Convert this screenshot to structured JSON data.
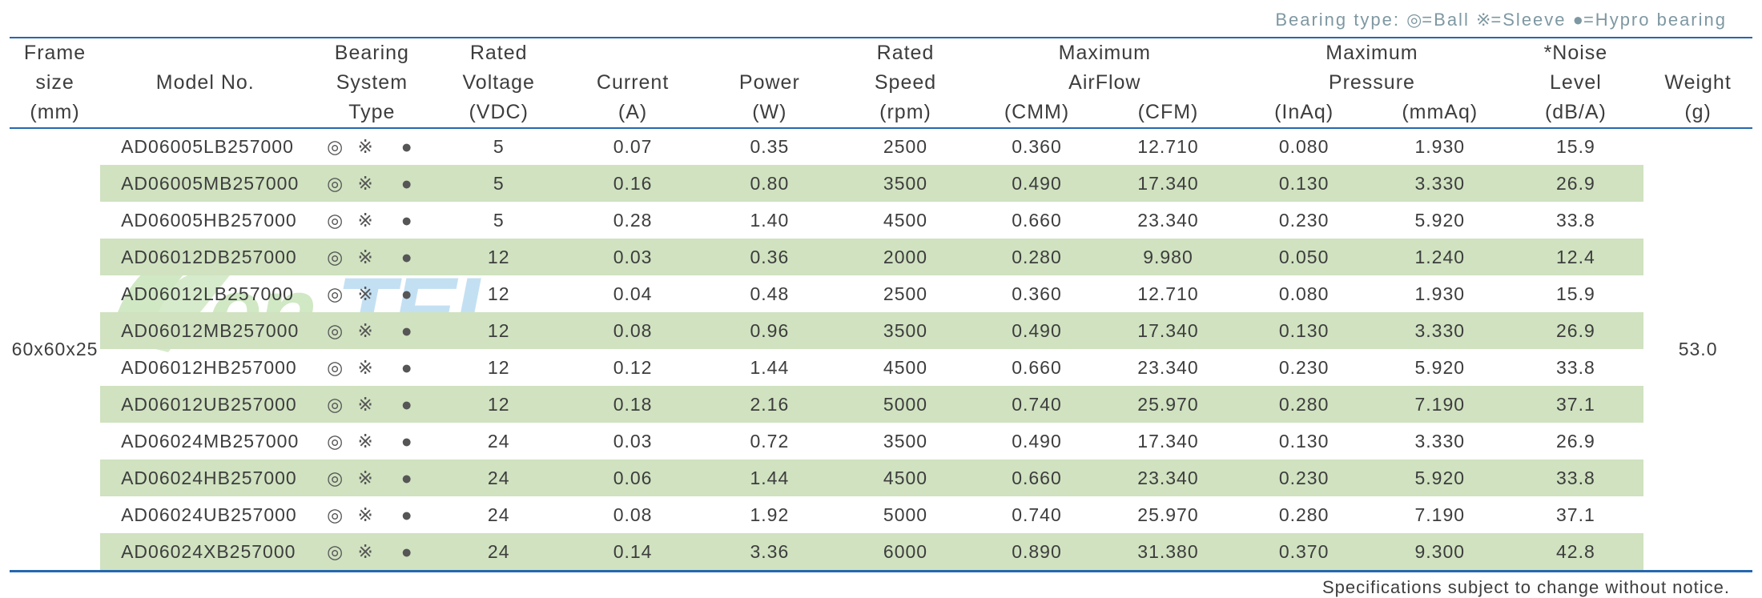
{
  "legend": {
    "label": "Bearing type:",
    "items": [
      {
        "sym": "◎",
        "text": "=Ball"
      },
      {
        "sym": "※",
        "text": "=Sleeve"
      },
      {
        "sym": "●",
        "text": "=Hypro bearing"
      }
    ],
    "color": "#7e98a2",
    "fontsize": 22
  },
  "watermark": {
    "text1": "en",
    "text2": "TEL",
    "color1": "#5bb030",
    "color2": "#2a93d6",
    "leaf_color": "#5bb030",
    "opacity": 0.28
  },
  "table": {
    "type": "table",
    "columns": [
      {
        "key": "frame",
        "header_lines": [
          "Frame",
          "size",
          "(mm)"
        ],
        "class": "col-frame"
      },
      {
        "key": "model",
        "header_lines": [
          "",
          "Model No.",
          ""
        ],
        "class": "col-model"
      },
      {
        "key": "bearing",
        "header_lines": [
          "Bearing",
          "System",
          "Type"
        ],
        "class": "col-bearing"
      },
      {
        "key": "voltage",
        "header_lines": [
          "Rated",
          "Voltage",
          "(VDC)"
        ],
        "class": "col-voltage"
      },
      {
        "key": "current",
        "header_lines": [
          "",
          "Current",
          "(A)"
        ],
        "class": "col-current"
      },
      {
        "key": "power",
        "header_lines": [
          "",
          "Power",
          "(W)"
        ],
        "class": "col-power"
      },
      {
        "key": "speed",
        "header_lines": [
          "Rated",
          "Speed",
          "(rpm)"
        ],
        "class": "col-speed"
      },
      {
        "key": "airflow",
        "header_span": 2,
        "header_lines": [
          "Maximum",
          "AirFlow"
        ],
        "sub": [
          "(CMM)",
          "(CFM)"
        ],
        "classes": [
          "col-cmm",
          "col-cfm"
        ]
      },
      {
        "key": "pressure",
        "header_span": 2,
        "header_lines": [
          "Maximum",
          "Pressure"
        ],
        "sub": [
          "(InAq)",
          "(mmAq)"
        ],
        "classes": [
          "col-inaq",
          "col-mmaq"
        ]
      },
      {
        "key": "noise",
        "header_lines": [
          "*Noise",
          "Level",
          "(dB/A)"
        ],
        "class": "col-noise"
      },
      {
        "key": "weight",
        "header_lines": [
          "",
          "Weight",
          "(g)"
        ],
        "class": "col-weight"
      }
    ],
    "frame_size": "60x60x25",
    "weight": "53.0",
    "bearing_symbols": "◎ ※ ●",
    "rows": [
      {
        "model": "AD06005LB257000",
        "voltage": "5",
        "current": "0.07",
        "power": "0.35",
        "speed": "2500",
        "cmm": "0.360",
        "cfm": "12.710",
        "inaq": "0.080",
        "mmaq": "1.930",
        "noise": "15.9"
      },
      {
        "model": "AD06005MB257000",
        "voltage": "5",
        "current": "0.16",
        "power": "0.80",
        "speed": "3500",
        "cmm": "0.490",
        "cfm": "17.340",
        "inaq": "0.130",
        "mmaq": "3.330",
        "noise": "26.9"
      },
      {
        "model": "AD06005HB257000",
        "voltage": "5",
        "current": "0.28",
        "power": "1.40",
        "speed": "4500",
        "cmm": "0.660",
        "cfm": "23.340",
        "inaq": "0.230",
        "mmaq": "5.920",
        "noise": "33.8"
      },
      {
        "model": "AD06012DB257000",
        "voltage": "12",
        "current": "0.03",
        "power": "0.36",
        "speed": "2000",
        "cmm": "0.280",
        "cfm": "9.980",
        "inaq": "0.050",
        "mmaq": "1.240",
        "noise": "12.4"
      },
      {
        "model": "AD06012LB257000",
        "voltage": "12",
        "current": "0.04",
        "power": "0.48",
        "speed": "2500",
        "cmm": "0.360",
        "cfm": "12.710",
        "inaq": "0.080",
        "mmaq": "1.930",
        "noise": "15.9"
      },
      {
        "model": "AD06012MB257000",
        "voltage": "12",
        "current": "0.08",
        "power": "0.96",
        "speed": "3500",
        "cmm": "0.490",
        "cfm": "17.340",
        "inaq": "0.130",
        "mmaq": "3.330",
        "noise": "26.9"
      },
      {
        "model": "AD06012HB257000",
        "voltage": "12",
        "current": "0.12",
        "power": "1.44",
        "speed": "4500",
        "cmm": "0.660",
        "cfm": "23.340",
        "inaq": "0.230",
        "mmaq": "5.920",
        "noise": "33.8"
      },
      {
        "model": "AD06012UB257000",
        "voltage": "12",
        "current": "0.18",
        "power": "2.16",
        "speed": "5000",
        "cmm": "0.740",
        "cfm": "25.970",
        "inaq": "0.280",
        "mmaq": "7.190",
        "noise": "37.1"
      },
      {
        "model": "AD06024MB257000",
        "voltage": "24",
        "current": "0.03",
        "power": "0.72",
        "speed": "3500",
        "cmm": "0.490",
        "cfm": "17.340",
        "inaq": "0.130",
        "mmaq": "3.330",
        "noise": "26.9"
      },
      {
        "model": "AD06024HB257000",
        "voltage": "24",
        "current": "0.06",
        "power": "1.44",
        "speed": "4500",
        "cmm": "0.660",
        "cfm": "23.340",
        "inaq": "0.230",
        "mmaq": "5.920",
        "noise": "33.8"
      },
      {
        "model": "AD06024UB257000",
        "voltage": "24",
        "current": "0.08",
        "power": "1.92",
        "speed": "5000",
        "cmm": "0.740",
        "cfm": "25.970",
        "inaq": "0.280",
        "mmaq": "7.190",
        "noise": "37.1"
      },
      {
        "model": "AD06024XB257000",
        "voltage": "24",
        "current": "0.14",
        "power": "3.36",
        "speed": "6000",
        "cmm": "0.890",
        "cfm": "31.380",
        "inaq": "0.370",
        "mmaq": "9.300",
        "noise": "42.8"
      }
    ],
    "row_stripe_color": "#d0e2c0",
    "rule_color": "#2468b0",
    "text_color": "#3d3d3d",
    "header_fontsize": 25,
    "cell_fontsize": 23
  },
  "footer": {
    "text": "Specifications subject to change without notice.",
    "color": "#3d3d3d",
    "fontsize": 22
  }
}
